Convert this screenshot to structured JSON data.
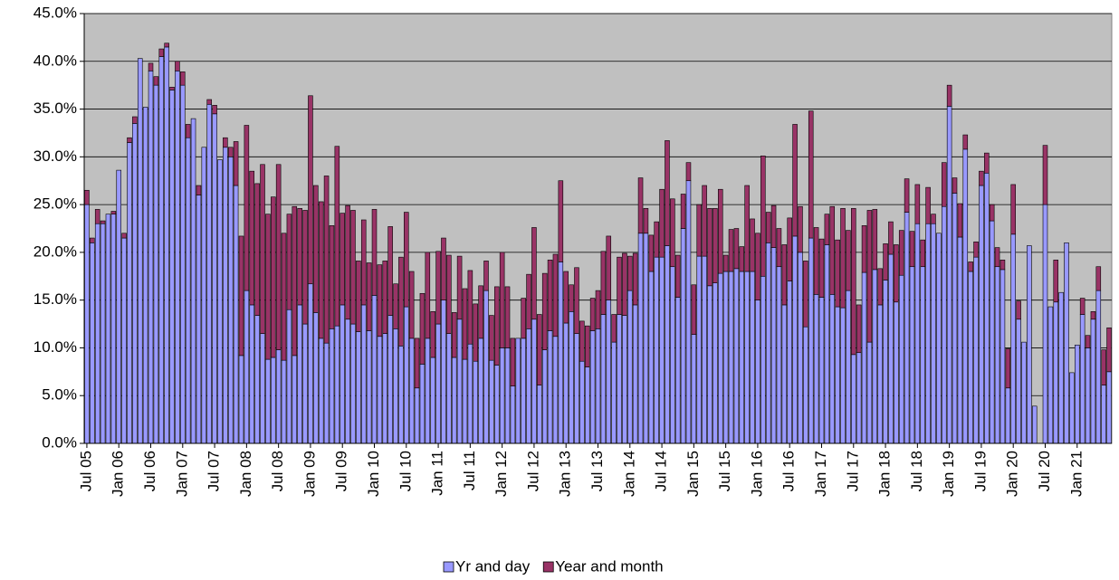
{
  "chart_data": {
    "type": "stacked_bar",
    "categories": [
      "Jul 05",
      null,
      null,
      null,
      null,
      null,
      "Jan 06",
      null,
      null,
      null,
      null,
      null,
      "Jul 06",
      null,
      null,
      null,
      null,
      null,
      "Jan 07",
      null,
      null,
      null,
      null,
      null,
      "Jul 07",
      null,
      null,
      null,
      null,
      null,
      "Jan 08",
      null,
      null,
      null,
      null,
      null,
      "Jul 08",
      null,
      null,
      null,
      null,
      null,
      "Jan 09",
      null,
      null,
      null,
      null,
      null,
      "Jul 09",
      null,
      null,
      null,
      null,
      null,
      "Jan 10",
      null,
      null,
      null,
      null,
      null,
      "Jul 10",
      null,
      null,
      null,
      null,
      null,
      "Jan 11",
      null,
      null,
      null,
      null,
      null,
      "Jul 11",
      null,
      null,
      null,
      null,
      null,
      "Jan 12",
      null,
      null,
      null,
      null,
      null,
      "Jul 12",
      null,
      null,
      null,
      null,
      null,
      "Jan 13",
      null,
      null,
      null,
      null,
      null,
      "Jul 13",
      null,
      null,
      null,
      null,
      null,
      "Jan 14",
      null,
      null,
      null,
      null,
      null,
      "Jul 14",
      null,
      null,
      null,
      null,
      null,
      "Jan 15",
      null,
      null,
      null,
      null,
      null,
      "Jul 15",
      null,
      null,
      null,
      null,
      null,
      "Jan 16",
      null,
      null,
      null,
      null,
      null,
      "Jul 16",
      null,
      null,
      null,
      null,
      null,
      "Jan 17",
      null,
      null,
      null,
      null,
      null,
      "Jul 17",
      null,
      null,
      null,
      null,
      null,
      "Jan 18",
      null,
      null,
      null,
      null,
      null,
      "Jul 18",
      null,
      null,
      null,
      null,
      null,
      "Jan 19",
      null,
      null,
      null,
      null,
      null,
      "Jul 19",
      null,
      null,
      null,
      null,
      null,
      "Jan 20",
      null,
      null,
      null,
      null,
      null,
      "Jul 20",
      null,
      null,
      null,
      null,
      null,
      "Jan 21",
      null,
      null,
      null,
      null,
      null,
      null
    ],
    "series": [
      {
        "name": "Yr and day",
        "color": "#9999ff",
        "values": [
          25,
          21,
          23,
          23,
          24,
          24,
          28.6,
          21.5,
          31.5,
          33.5,
          40.3,
          35.2,
          39,
          37.5,
          40.5,
          41.5,
          37,
          39,
          37.5,
          32,
          34,
          26,
          31,
          35.5,
          34.5,
          29.7,
          31,
          30,
          27,
          9.2,
          16,
          14.5,
          13.4,
          11.5,
          8.8,
          9,
          9.8,
          8.7,
          14,
          9.2,
          14.5,
          12.5,
          16.7,
          13.7,
          11,
          10.5,
          12,
          12.3,
          14.5,
          13,
          12.5,
          11.7,
          14.5,
          11.8,
          15.5,
          11.2,
          11.5,
          13.4,
          12,
          10.2,
          14.3,
          11,
          5.8,
          8.3,
          11,
          9,
          12.5,
          15,
          11.5,
          9,
          13,
          8.8,
          10.4,
          8.6,
          11,
          16,
          8.7,
          8.2,
          10,
          10,
          6,
          11,
          11,
          12,
          13,
          6.1,
          9.8,
          11.8,
          11.2,
          19,
          12.6,
          13.8,
          11.5,
          8.6,
          8,
          11.8,
          12,
          13.5,
          15,
          10.6,
          13.5,
          13.4,
          16,
          14.5,
          22,
          22,
          18,
          19.5,
          19.5,
          20.7,
          18.5,
          15.3,
          22.5,
          27.5,
          11.4,
          19.6,
          19.6,
          16.5,
          16.8,
          17.8,
          18,
          18,
          18.3,
          18,
          18,
          18,
          15,
          17.5,
          21,
          20.5,
          18.5,
          14.5,
          17,
          21.7,
          20,
          12.2,
          21.5,
          15.6,
          15.3,
          20.8,
          15.6,
          14.3,
          14.2,
          16,
          9.3,
          9.5,
          17.9,
          10.6,
          18.2,
          14.5,
          17.1,
          19.8,
          14.8,
          17.6,
          24.2,
          18.5,
          23,
          18.5,
          23,
          23,
          22,
          24.8,
          35.3,
          26.2,
          21.6,
          30.8,
          18,
          19.5,
          27,
          28.3,
          23.3,
          18.5,
          18.2,
          5.8,
          21.9,
          13,
          10.6,
          20.7,
          3.9,
          null,
          25,
          14.3,
          14.8,
          15.8,
          21,
          7.4,
          10.3,
          13.5,
          10,
          13,
          16,
          6.1,
          7.5
        ]
      },
      {
        "name": "Year and month",
        "color": "#993366",
        "values": [
          1.5,
          0.5,
          1.5,
          0.3,
          0,
          0.3,
          0,
          0.5,
          0.5,
          0.7,
          0,
          0,
          0.8,
          0.9,
          0.8,
          0.4,
          0.3,
          1,
          1.4,
          1.4,
          0,
          1,
          0,
          0.5,
          0.9,
          0,
          1,
          1,
          4.6,
          12.5,
          17.3,
          14,
          13.8,
          17.7,
          15.2,
          16.8,
          19.4,
          13.3,
          10,
          15.6,
          10.1,
          11.9,
          19.7,
          13.3,
          14.3,
          17.5,
          10.8,
          18.8,
          9.6,
          11.9,
          11.9,
          7.4,
          8.9,
          7.1,
          9,
          7.5,
          7.6,
          9.3,
          4.7,
          9.3,
          9.9,
          7,
          5.2,
          7.4,
          9,
          4.8,
          7.6,
          6.5,
          8.2,
          4.7,
          6.6,
          7.4,
          7.7,
          6,
          5.5,
          3.1,
          4.7,
          8.2,
          10,
          6.4,
          5,
          0,
          4.2,
          5.7,
          9.6,
          7.4,
          8,
          7.4,
          8.6,
          8.5,
          5.4,
          2.8,
          6.9,
          4.2,
          4.3,
          3.4,
          4,
          6.6,
          6.7,
          2.9,
          6,
          6.5,
          3.6,
          5.4,
          5.8,
          2.6,
          3.8,
          3.7,
          7.1,
          11,
          7.1,
          4.4,
          3.6,
          1.9,
          5.2,
          5.4,
          7.4,
          8.1,
          7.8,
          8.8,
          1.7,
          4.4,
          4.2,
          2.6,
          9,
          5.5,
          7,
          12.6,
          3.2,
          4.4,
          4,
          6.3,
          6.6,
          11.7,
          4.8,
          6.9,
          13.3,
          7,
          6.1,
          3.2,
          9.2,
          7,
          10.4,
          6.3,
          15.3,
          5,
          4.9,
          13.8,
          6.3,
          3.8,
          3.8,
          3.4,
          6,
          4.7,
          3.5,
          3.7,
          4.1,
          2.8,
          3.8,
          1,
          0,
          4.6,
          2.2,
          1.6,
          3.5,
          1.5,
          1,
          1.6,
          1.5,
          2.1,
          1.7,
          2,
          1,
          4.1,
          5.2,
          1.9,
          0,
          0,
          0,
          null,
          6.2,
          0,
          4.4,
          0,
          0,
          0,
          0,
          1.7,
          1.3,
          0.8,
          2.5,
          3.7,
          4.6
        ]
      }
    ],
    "ylim": [
      0,
      45
    ],
    "yticks": [
      {
        "value": 0,
        "label": "0.0%"
      },
      {
        "value": 5,
        "label": "5.0%"
      },
      {
        "value": 10,
        "label": "10.0%"
      },
      {
        "value": 15,
        "label": "15.0%"
      },
      {
        "value": 20,
        "label": "20.0%"
      },
      {
        "value": 25,
        "label": "25.0%"
      },
      {
        "value": 30,
        "label": "30.0%"
      },
      {
        "value": 35,
        "label": "35.0%"
      },
      {
        "value": 40,
        "label": "40.0%"
      },
      {
        "value": 45,
        "label": "45.0%"
      }
    ],
    "grid": true,
    "legend": "bottom",
    "plot_background": "#c0c0c0"
  }
}
